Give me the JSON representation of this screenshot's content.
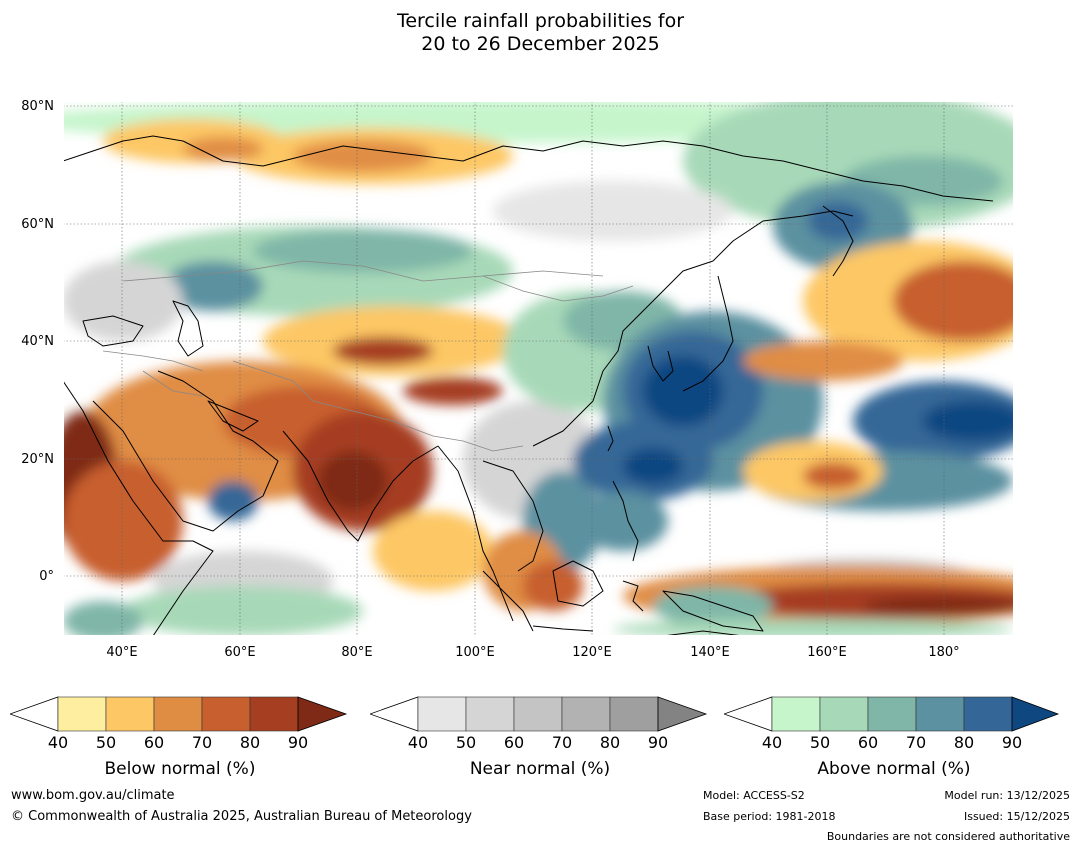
{
  "title": {
    "line1": "Tercile rainfall probabilities for",
    "line2": "20 to 26 December 2025"
  },
  "map": {
    "lat_labels": [
      "80°N",
      "60°N",
      "40°N",
      "20°N",
      "0°"
    ],
    "lon_labels": [
      "40°E",
      "60°E",
      "80°E",
      "100°E",
      "120°E",
      "140°E",
      "160°E",
      "180°"
    ],
    "lon_range": [
      30,
      192
    ],
    "lat_range": [
      -10,
      81
    ]
  },
  "colorbars": [
    {
      "name": "below",
      "label": "Below normal (%)",
      "ticks": [
        "40",
        "50",
        "60",
        "70",
        "80",
        "90"
      ],
      "colors": [
        "#fdeea0",
        "#fdc765",
        "#e08d44",
        "#c75f2f",
        "#a63e21",
        "#7f2a16"
      ]
    },
    {
      "name": "near",
      "label": "Near normal (%)",
      "ticks": [
        "40",
        "50",
        "60",
        "70",
        "80",
        "90"
      ],
      "colors": [
        "#e6e6e6",
        "#d5d5d5",
        "#c4c4c4",
        "#b2b2b2",
        "#9f9f9f",
        "#838383"
      ]
    },
    {
      "name": "above",
      "label": "Above normal (%)",
      "ticks": [
        "40",
        "50",
        "60",
        "70",
        "80",
        "90"
      ],
      "colors": [
        "#c6f5cc",
        "#a7d9b8",
        "#7fb6a7",
        "#5b91a0",
        "#346797",
        "#0f4781"
      ]
    }
  ],
  "footer": {
    "url": "www.bom.gov.au/climate",
    "copyright": "© Commonwealth of Australia 2025, Australian Bureau of Meteorology",
    "model": "Model: ACCESS-S2",
    "base_period": "Base period: 1981-2018",
    "model_run": "Model run: 13/12/2025",
    "issued": "Issued: 15/12/2025",
    "boundaries": "Boundaries are not considered authoritative"
  }
}
